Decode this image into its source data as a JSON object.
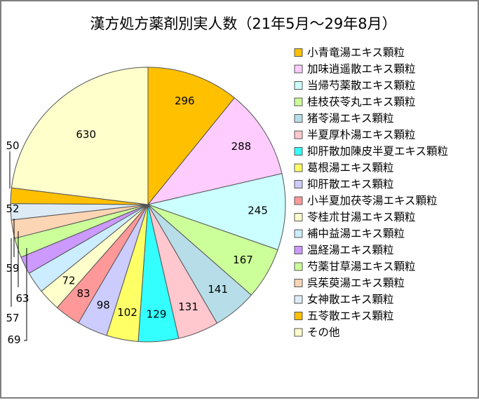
{
  "chart_data": {
    "type": "pie",
    "title": "漢方処方薬剤別実人数（21年5月～29年8月）",
    "legend_position": "right",
    "slices": [
      {
        "name": "小青竜湯エキス顆粒",
        "value": 296,
        "color": "#FFC000"
      },
      {
        "name": "加味逍遥散エキス顆粒",
        "value": 288,
        "color": "#FFCCFF"
      },
      {
        "name": "当帰芍薬散エキス顆粒",
        "value": 245,
        "color": "#CCFFFF"
      },
      {
        "name": "桂枝茯苓丸エキス顆粒",
        "value": 167,
        "color": "#CCFF99"
      },
      {
        "name": "猪苓湯エキス顆粒",
        "value": 141,
        "color": "#B7DEE8"
      },
      {
        "name": "半夏厚朴湯エキス顆粒",
        "value": 131,
        "color": "#FFC7CE"
      },
      {
        "name": "抑肝散加陳皮半夏エキス顆粒",
        "value": 129,
        "color": "#33FFFF"
      },
      {
        "name": "葛根湯エキス顆粒",
        "value": 102,
        "color": "#FFFF66"
      },
      {
        "name": "抑肝散エキス顆粒",
        "value": 98,
        "color": "#CCCCFF"
      },
      {
        "name": "小半夏加茯苓湯エキス顆粒",
        "value": 83,
        "color": "#FF9999"
      },
      {
        "name": "苓桂朮甘湯エキス顆粒",
        "value": 72,
        "color": "#FFFFCC"
      },
      {
        "name": "補中益湯エキス顆粒",
        "value": 69,
        "color": "#CCECFF"
      },
      {
        "name": "温経湯エキス顆粒",
        "value": 57,
        "color": "#CC99FF"
      },
      {
        "name": "芍薬甘草湯エキス顆粒",
        "value": 63,
        "color": "#CCFF99"
      },
      {
        "name": "呉茱萸湯エキス顆粒",
        "value": 59,
        "color": "#FCD5B4"
      },
      {
        "name": "女神散エキス顆粒",
        "value": 52,
        "color": "#DDEBF7"
      },
      {
        "name": "五苓散エキス顆粒",
        "value": 50,
        "color": "#FFC000"
      },
      {
        "name": "その他",
        "value": 630,
        "color": "#FFFFCC"
      }
    ]
  }
}
